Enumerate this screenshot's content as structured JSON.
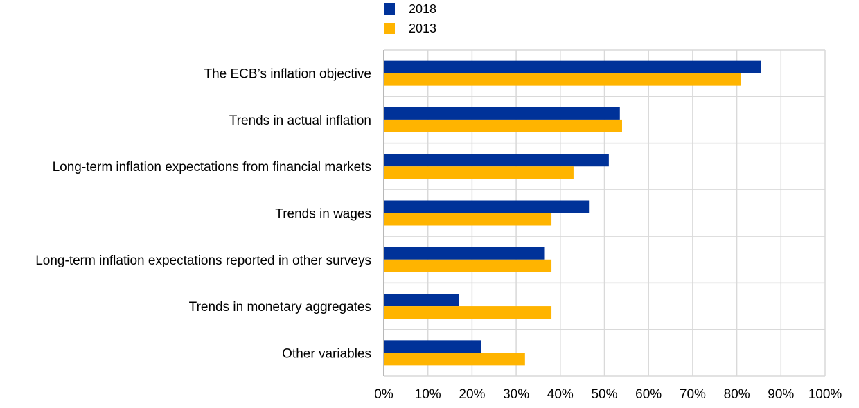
{
  "chart_data": {
    "type": "bar",
    "orientation": "horizontal",
    "categories": [
      "The ECB’s inflation objective",
      "Trends in actual inflation",
      "Long-term inflation expectations from financial markets",
      "Trends in wages",
      "Long-term inflation expectations reported in other surveys",
      "Trends in monetary aggregates",
      "Other variables"
    ],
    "series": [
      {
        "name": "2018",
        "color": "#003299",
        "values": [
          85.5,
          53.5,
          51,
          46.5,
          36.5,
          17,
          22
        ]
      },
      {
        "name": "2013",
        "color": "#FFB400",
        "values": [
          81,
          54,
          43,
          38,
          38,
          38,
          32
        ]
      }
    ],
    "x_ticks": [
      "0%",
      "10%",
      "20%",
      "30%",
      "40%",
      "50%",
      "60%",
      "70%",
      "80%",
      "90%",
      "100%"
    ],
    "xlim": [
      0,
      100
    ],
    "grid": true,
    "legend_position": "top"
  }
}
